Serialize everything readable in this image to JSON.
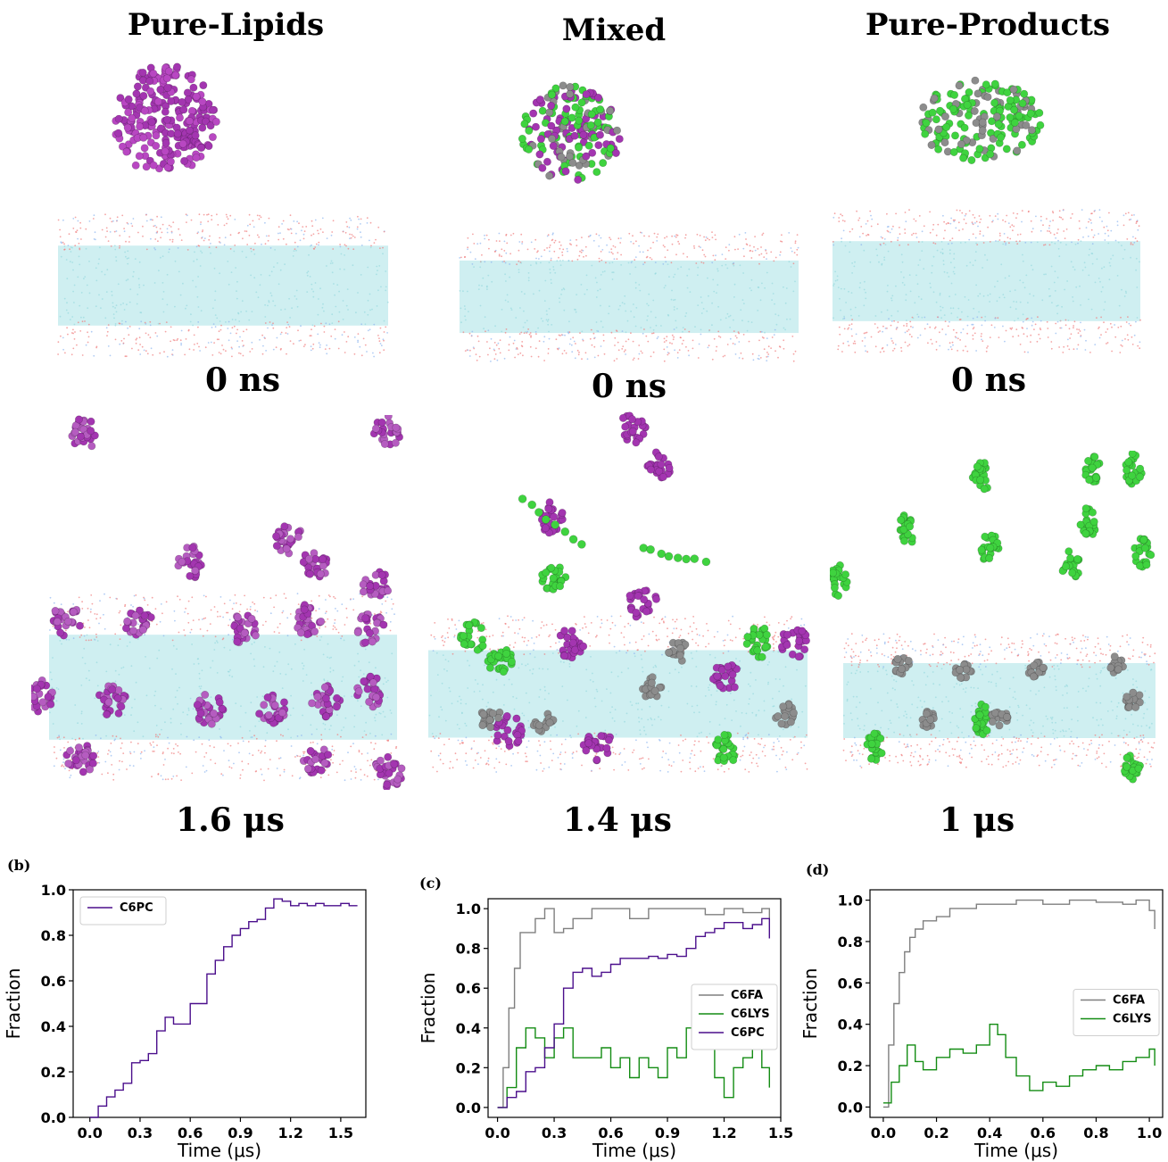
{
  "titles": [
    "Pure-Lipids",
    "Mixed",
    "Pure-Products"
  ],
  "top_times": [
    "0 ns",
    "0 ns",
    "0 ns"
  ],
  "bottom_times": [
    "1.6 μs",
    "1.4 μs",
    "1 μs"
  ],
  "panel_labels": [
    "(b)",
    "(c)",
    "(d)"
  ],
  "colors": {
    "lipid": "#a335b0",
    "product_green": "#3fd33f",
    "product_grey": "#8c8c8c",
    "water_core": "#bfe9ec",
    "headgroup_red": "#f07d7d",
    "headgroup_blue": "#8fb6ef"
  },
  "chart_data": [
    {
      "type": "line",
      "xlabel": "Time (μs)",
      "ylabel": "Fraction",
      "xlim": [
        -0.1,
        1.65
      ],
      "ylim": [
        0,
        1.0
      ],
      "xticks": [
        "0.0",
        "0.3",
        "0.6",
        "0.9",
        "1.2",
        "1.5"
      ],
      "yticks": [
        "0.0",
        "0.2",
        "0.4",
        "0.6",
        "0.8",
        "1.0"
      ],
      "legend": "top-left",
      "series": [
        {
          "name": "C6PC",
          "color": "#4b0f8c",
          "x": [
            0.0,
            0.05,
            0.1,
            0.15,
            0.2,
            0.25,
            0.3,
            0.35,
            0.4,
            0.45,
            0.5,
            0.55,
            0.6,
            0.65,
            0.7,
            0.75,
            0.8,
            0.85,
            0.9,
            0.95,
            1.0,
            1.05,
            1.1,
            1.15,
            1.2,
            1.25,
            1.3,
            1.35,
            1.4,
            1.45,
            1.5,
            1.55,
            1.6
          ],
          "y": [
            0.0,
            0.05,
            0.09,
            0.12,
            0.15,
            0.24,
            0.25,
            0.28,
            0.38,
            0.44,
            0.41,
            0.41,
            0.5,
            0.5,
            0.63,
            0.69,
            0.75,
            0.8,
            0.83,
            0.86,
            0.87,
            0.92,
            0.96,
            0.95,
            0.93,
            0.94,
            0.93,
            0.94,
            0.93,
            0.93,
            0.94,
            0.93,
            0.93
          ]
        }
      ]
    },
    {
      "type": "line",
      "xlabel": "Time (μs)",
      "ylabel": "Fraction",
      "xlim": [
        -0.05,
        1.5
      ],
      "ylim": [
        -0.05,
        1.05
      ],
      "xticks": [
        "0.0",
        "0.3",
        "0.6",
        "0.9",
        "1.2",
        "1.5"
      ],
      "yticks": [
        "0.0",
        "0.2",
        "0.4",
        "0.6",
        "0.8",
        "1.0"
      ],
      "legend": "center-right",
      "series": [
        {
          "name": "C6FA",
          "color": "#7f7f7f",
          "x": [
            0.0,
            0.03,
            0.06,
            0.09,
            0.12,
            0.15,
            0.2,
            0.25,
            0.3,
            0.35,
            0.4,
            0.5,
            0.6,
            0.7,
            0.8,
            0.9,
            1.0,
            1.1,
            1.2,
            1.3,
            1.4,
            1.44
          ],
          "y": [
            0.0,
            0.2,
            0.5,
            0.7,
            0.88,
            0.88,
            0.95,
            1.0,
            0.88,
            0.9,
            0.95,
            1.0,
            1.0,
            0.95,
            1.0,
            1.0,
            1.0,
            0.97,
            1.0,
            0.98,
            1.0,
            0.95
          ]
        },
        {
          "name": "C6LYS",
          "color": "#138c13",
          "x": [
            0.0,
            0.05,
            0.1,
            0.15,
            0.2,
            0.25,
            0.3,
            0.35,
            0.4,
            0.45,
            0.5,
            0.55,
            0.6,
            0.65,
            0.7,
            0.75,
            0.8,
            0.85,
            0.9,
            0.95,
            1.0,
            1.05,
            1.1,
            1.15,
            1.2,
            1.25,
            1.3,
            1.35,
            1.4,
            1.44
          ],
          "y": [
            0.0,
            0.1,
            0.3,
            0.4,
            0.35,
            0.25,
            0.35,
            0.4,
            0.25,
            0.25,
            0.25,
            0.3,
            0.2,
            0.25,
            0.15,
            0.25,
            0.2,
            0.15,
            0.3,
            0.25,
            0.4,
            0.5,
            0.3,
            0.15,
            0.05,
            0.2,
            0.25,
            0.3,
            0.2,
            0.1
          ]
        },
        {
          "name": "C6PC",
          "color": "#4b0f8c",
          "x": [
            0.0,
            0.05,
            0.1,
            0.15,
            0.2,
            0.25,
            0.3,
            0.35,
            0.4,
            0.45,
            0.5,
            0.55,
            0.6,
            0.65,
            0.7,
            0.75,
            0.8,
            0.85,
            0.9,
            0.95,
            1.0,
            1.05,
            1.1,
            1.15,
            1.2,
            1.25,
            1.3,
            1.35,
            1.4,
            1.44
          ],
          "y": [
            0.0,
            0.05,
            0.08,
            0.18,
            0.2,
            0.3,
            0.42,
            0.6,
            0.68,
            0.7,
            0.66,
            0.68,
            0.72,
            0.75,
            0.75,
            0.75,
            0.76,
            0.75,
            0.77,
            0.76,
            0.8,
            0.86,
            0.88,
            0.9,
            0.93,
            0.93,
            0.9,
            0.92,
            0.95,
            0.85
          ]
        }
      ]
    },
    {
      "type": "line",
      "xlabel": "Time (μs)",
      "ylabel": "Fraction",
      "xlim": [
        -0.05,
        1.05
      ],
      "ylim": [
        -0.05,
        1.05
      ],
      "xticks": [
        "0.0",
        "0.2",
        "0.4",
        "0.6",
        "0.8",
        "1.0"
      ],
      "yticks": [
        "0.0",
        "0.2",
        "0.4",
        "0.6",
        "0.8",
        "1.0"
      ],
      "legend": "center-right",
      "series": [
        {
          "name": "C6FA",
          "color": "#7f7f7f",
          "x": [
            0.0,
            0.02,
            0.04,
            0.06,
            0.08,
            0.1,
            0.12,
            0.15,
            0.2,
            0.25,
            0.3,
            0.35,
            0.4,
            0.5,
            0.6,
            0.7,
            0.8,
            0.9,
            0.95,
            1.0,
            1.02
          ],
          "y": [
            0.0,
            0.3,
            0.5,
            0.65,
            0.75,
            0.82,
            0.86,
            0.9,
            0.92,
            0.96,
            0.96,
            0.98,
            0.98,
            1.0,
            0.98,
            1.0,
            0.99,
            0.98,
            1.0,
            0.95,
            0.86
          ]
        },
        {
          "name": "C6LYS",
          "color": "#138c13",
          "x": [
            0.0,
            0.03,
            0.06,
            0.09,
            0.12,
            0.15,
            0.2,
            0.25,
            0.3,
            0.35,
            0.4,
            0.43,
            0.46,
            0.5,
            0.55,
            0.6,
            0.65,
            0.7,
            0.75,
            0.8,
            0.85,
            0.9,
            0.95,
            1.0,
            1.02
          ],
          "y": [
            0.02,
            0.12,
            0.2,
            0.3,
            0.22,
            0.18,
            0.24,
            0.28,
            0.26,
            0.3,
            0.4,
            0.35,
            0.24,
            0.15,
            0.08,
            0.12,
            0.1,
            0.15,
            0.18,
            0.2,
            0.18,
            0.22,
            0.24,
            0.28,
            0.2
          ]
        }
      ]
    }
  ]
}
